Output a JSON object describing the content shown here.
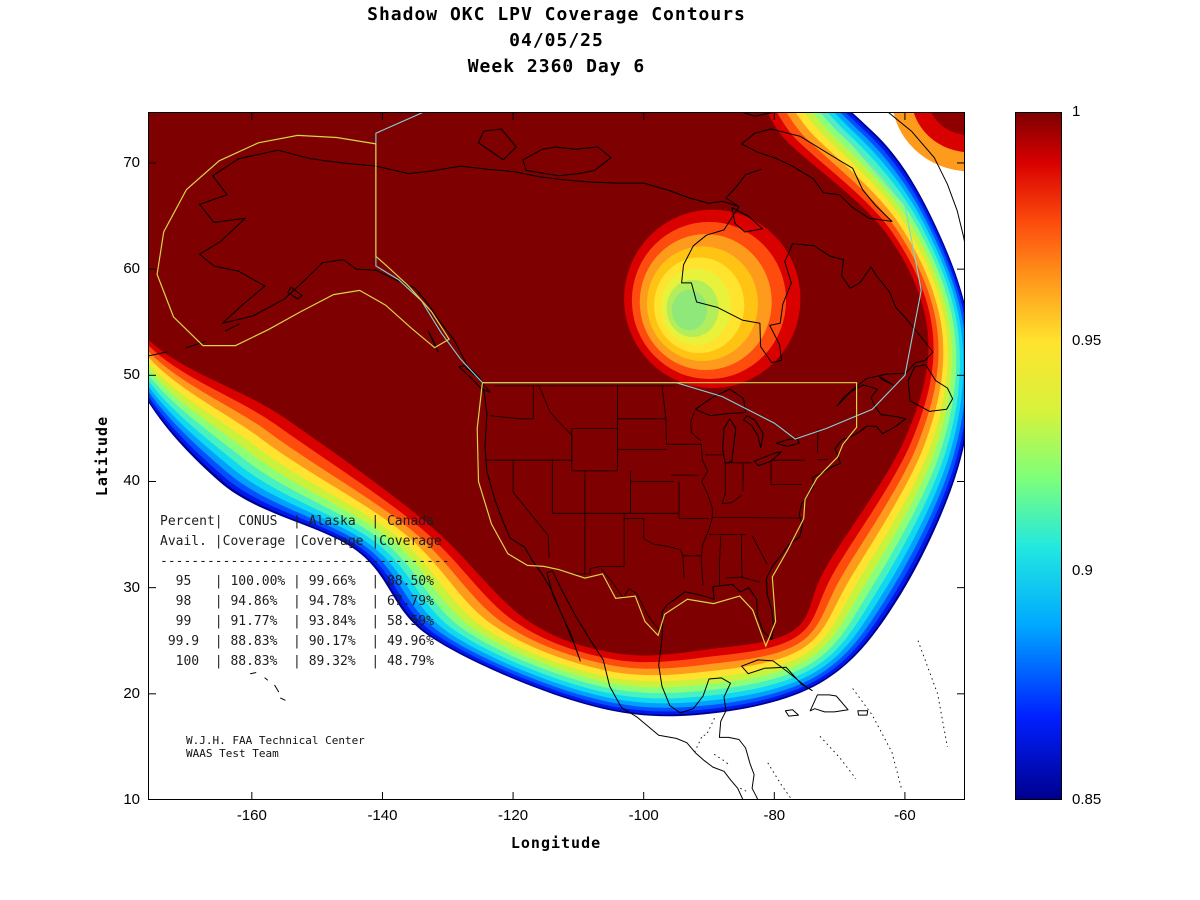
{
  "title": {
    "line1": "Shadow OKC LPV Coverage Contours",
    "line2": "04/05/25",
    "line3": "Week 2360 Day 6"
  },
  "axes": {
    "x_label": "Longitude",
    "y_label": "Latitude",
    "x_ticks": [
      "-160",
      "-140",
      "-120",
      "-100",
      "-80",
      "-60"
    ],
    "y_ticks": [
      "70",
      "60",
      "50",
      "40",
      "30",
      "20",
      "10"
    ]
  },
  "colorbar": {
    "min": 0.85,
    "max": 1,
    "tick_labels": [
      "1",
      "0.95",
      "0.9",
      "0.85"
    ],
    "stops": [
      {
        "v": 0.85,
        "c": "#00008F"
      },
      {
        "v": 0.868,
        "c": "#0020FF"
      },
      {
        "v": 0.888,
        "c": "#00A8FF"
      },
      {
        "v": 0.905,
        "c": "#22E8E0"
      },
      {
        "v": 0.92,
        "c": "#7DFF7A"
      },
      {
        "v": 0.935,
        "c": "#D8F23B"
      },
      {
        "v": 0.95,
        "c": "#FFE32E"
      },
      {
        "v": 0.963,
        "c": "#FF9B1C"
      },
      {
        "v": 0.976,
        "c": "#FD4C0D"
      },
      {
        "v": 0.989,
        "c": "#D90000"
      },
      {
        "v": 1.0,
        "c": "#7E0000"
      }
    ]
  },
  "table": {
    "header_row1": [
      "Percent",
      "CONUS",
      "Alaska",
      "Canada"
    ],
    "header_row2": [
      "Avail.",
      "Coverage",
      "Coverage",
      "Coverage"
    ],
    "rows": [
      [
        "95",
        "100.00%",
        "99.66%",
        "88.50%"
      ],
      [
        "98",
        "94.86%",
        "94.78%",
        "67.79%"
      ],
      [
        "99",
        "91.77%",
        "93.84%",
        "58.59%"
      ],
      [
        "99.9",
        "88.83%",
        "90.17%",
        "49.96%"
      ],
      [
        "100",
        "88.83%",
        "89.32%",
        "48.79%"
      ]
    ]
  },
  "credit": {
    "line1": "W.J.H. FAA Technical Center",
    "line2": "WAAS Test Team"
  },
  "palette": {
    "band_colors": [
      "#00008F",
      "#0018E8",
      "#0050FF",
      "#00A0FF",
      "#10D8F0",
      "#48F2C0",
      "#8CFF7A",
      "#C8F23B",
      "#FFE32E",
      "#FF9B1C",
      "#FD4C0D",
      "#D90000"
    ],
    "core_color": "#7E0000",
    "dip_colors": [
      "#D90000",
      "#FD4C0D",
      "#FF9B1C",
      "#FFC413",
      "#FFE32E",
      "#E9F23B",
      "#B2ED5C",
      "#8FE87A"
    ],
    "greenland_colors": [
      "#FF9B1C",
      "#D90000",
      "#8E0000"
    ],
    "coastline_color": "#000000",
    "state_line_color": "#000000",
    "conus_sv_color": "#d8d44a",
    "alaska_sv_color": "#d8d44a",
    "canada_sv_color": "#7fd4d8",
    "background": "#ffffff"
  },
  "chart_data": {
    "type": "heatmap",
    "title": "Shadow OKC LPV Coverage Contours",
    "date": "04/05/25",
    "gps_week_day": "Week 2360 Day 6",
    "xlabel": "Longitude",
    "ylabel": "Latitude",
    "xlim": [
      -175.9,
      -50.8
    ],
    "ylim": [
      10,
      74.8
    ],
    "xticks": [
      -160,
      -140,
      -120,
      -100,
      -80,
      -60
    ],
    "yticks": [
      10,
      20,
      30,
      40,
      50,
      60,
      70
    ],
    "grid": false,
    "colorbar": {
      "position": "right",
      "min": 0.85,
      "max": 1.0,
      "ticks": [
        1,
        0.95,
        0.9,
        0.85
      ],
      "colormap": "jet"
    },
    "description_of_field": "LPV coverage fraction contours over North America; deep red core (~1.0) covers CONUS, Alaska and most of Canada, with concentric jet-colored bands falling to 0.85 at the outer edge, and a local minimum (~0.92) dip centered over Hudson Bay",
    "coverage_table": {
      "columns": [
        "Percent Avail.",
        "CONUS Coverage",
        "Alaska Coverage",
        "Canada Coverage"
      ],
      "rows": [
        [
          95,
          "100.00%",
          "99.66%",
          "88.50%"
        ],
        [
          98,
          "94.86%",
          "94.78%",
          "67.79%"
        ],
        [
          99,
          "91.77%",
          "93.84%",
          "58.59%"
        ],
        [
          99.9,
          "88.83%",
          "90.17%",
          "49.96%"
        ],
        [
          100,
          "88.83%",
          "89.32%",
          "48.79%"
        ]
      ]
    }
  }
}
